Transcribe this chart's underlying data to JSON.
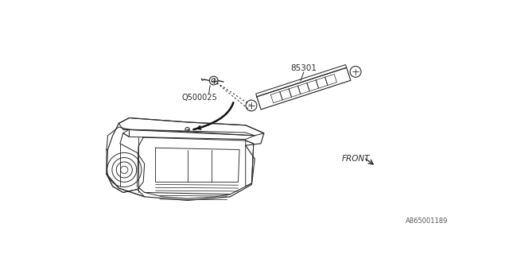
{
  "bg_color": "#ffffff",
  "line_color": "#2a2a2a",
  "text_color": "#2a2a2a",
  "label_85301": "85301",
  "label_Q500025": "Q500025",
  "label_FRONT": "FRONT",
  "label_diagram_id": "A865001189",
  "fig_width": 6.4,
  "fig_height": 3.2,
  "dpi": 100
}
